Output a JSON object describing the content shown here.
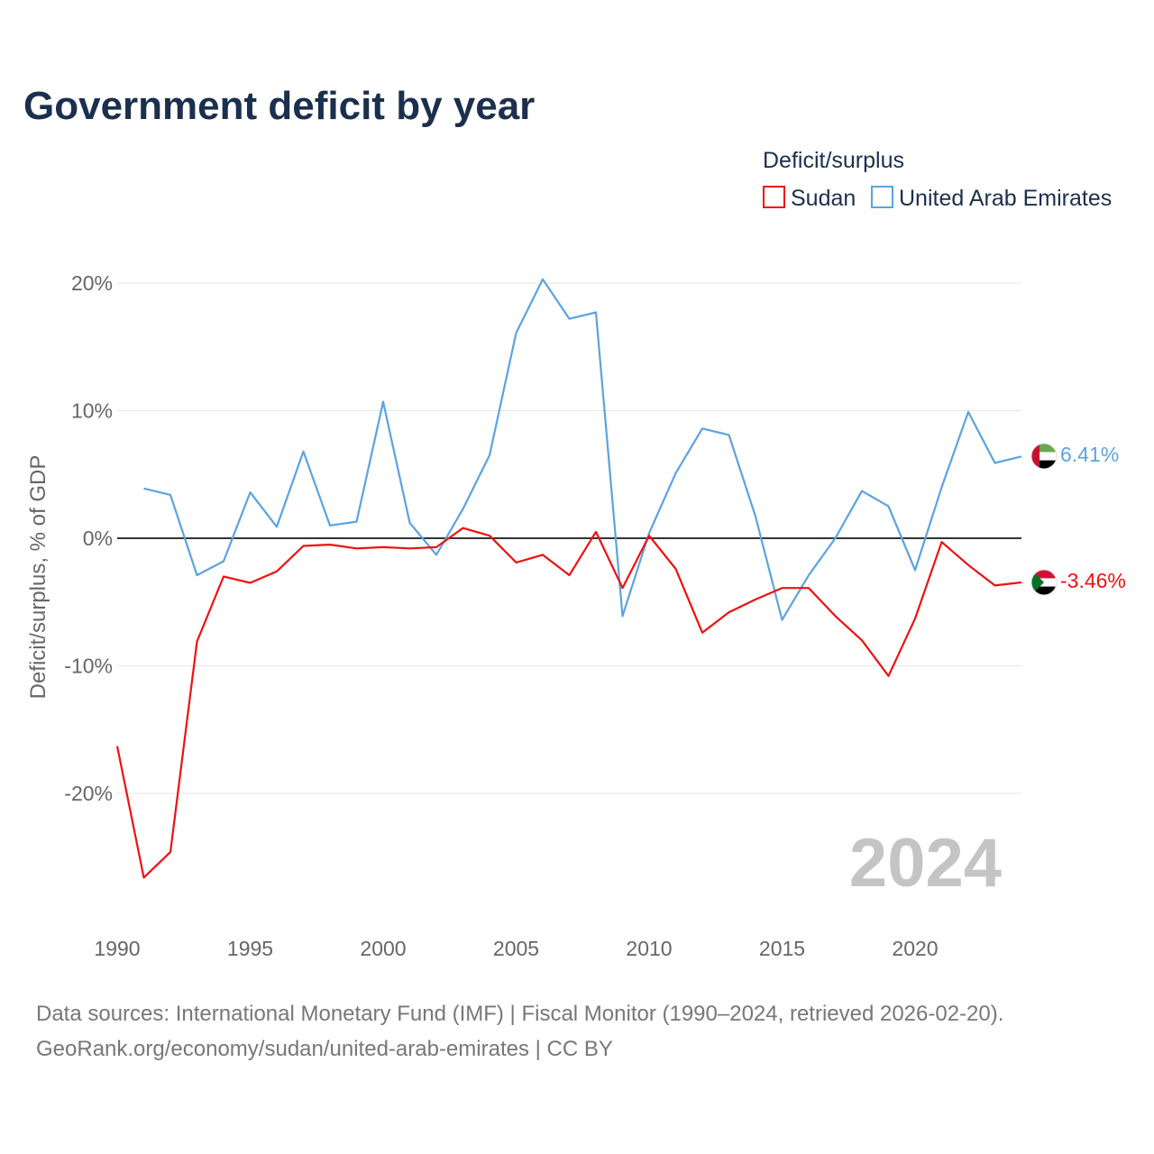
{
  "title": "Government deficit by year",
  "legend": {
    "title": "Deficit/surplus",
    "items": [
      {
        "name": "Sudan",
        "color": "#ee1111"
      },
      {
        "name": "United Arab Emirates",
        "color": "#5ba3e0"
      }
    ]
  },
  "big_year": "2024",
  "sources": {
    "line1": "Data sources: International Monetary Fund (IMF) | Fiscal Monitor (1990–2024, retrieved 2026-02-20).",
    "line2": "GeoRank.org/economy/sudan/united-arab-emirates | CC BY"
  },
  "chart_data": {
    "type": "line",
    "title": "Government deficit by year",
    "xlabel": "",
    "ylabel": "Deficit/surplus, % of GDP",
    "xlim": [
      1990,
      2024
    ],
    "ylim": [
      -28,
      21
    ],
    "x_ticks": [
      1990,
      1995,
      2000,
      2005,
      2010,
      2015,
      2020
    ],
    "y_ticks": [
      20,
      10,
      0,
      -10,
      -20
    ],
    "y_tick_labels": [
      "20%",
      "10%",
      "0%",
      "-10%",
      "-20%"
    ],
    "zero_line": true,
    "grid": true,
    "series": [
      {
        "name": "Sudan",
        "color": "#ee1111",
        "end_label": "-3.46%",
        "points": [
          [
            1990,
            -16.3
          ],
          [
            1991,
            -26.6
          ],
          [
            1992,
            -24.6
          ],
          [
            1993,
            -8.1
          ],
          [
            1994,
            -3.0
          ],
          [
            1995,
            -3.5
          ],
          [
            1996,
            -2.6
          ],
          [
            1997,
            -0.6
          ],
          [
            1998,
            -0.5
          ],
          [
            1999,
            -0.8
          ],
          [
            2000,
            -0.7
          ],
          [
            2001,
            -0.8
          ],
          [
            2002,
            -0.7
          ],
          [
            2003,
            0.8
          ],
          [
            2004,
            0.2
          ],
          [
            2005,
            -1.9
          ],
          [
            2006,
            -1.3
          ],
          [
            2007,
            -2.9
          ],
          [
            2008,
            0.5
          ],
          [
            2009,
            -3.9
          ],
          [
            2010,
            0.2
          ],
          [
            2011,
            -2.4
          ],
          [
            2012,
            -7.4
          ],
          [
            2013,
            -5.8
          ],
          [
            2014,
            -4.8
          ],
          [
            2015,
            -3.9
          ],
          [
            2016,
            -3.9
          ],
          [
            2017,
            -6.1
          ],
          [
            2018,
            -8.0
          ],
          [
            2019,
            -10.8
          ],
          [
            2020,
            -6.3
          ],
          [
            2021,
            -0.3
          ],
          [
            2022,
            -2.1
          ],
          [
            2023,
            -3.7
          ],
          [
            2024,
            -3.46
          ]
        ]
      },
      {
        "name": "United Arab Emirates",
        "color": "#5ba3e0",
        "end_label": "6.41%",
        "points": [
          [
            1991,
            3.9
          ],
          [
            1992,
            3.4
          ],
          [
            1993,
            -2.9
          ],
          [
            1994,
            -1.8
          ],
          [
            1995,
            3.6
          ],
          [
            1996,
            0.9
          ],
          [
            1997,
            6.8
          ],
          [
            1998,
            1.0
          ],
          [
            1999,
            1.3
          ],
          [
            2000,
            10.7
          ],
          [
            2001,
            1.2
          ],
          [
            2002,
            -1.3
          ],
          [
            2003,
            2.3
          ],
          [
            2004,
            6.5
          ],
          [
            2005,
            16.1
          ],
          [
            2006,
            20.3
          ],
          [
            2007,
            17.2
          ],
          [
            2008,
            17.7
          ],
          [
            2009,
            -6.1
          ],
          [
            2010,
            0.4
          ],
          [
            2011,
            5.1
          ],
          [
            2012,
            8.6
          ],
          [
            2013,
            8.1
          ],
          [
            2014,
            1.7
          ],
          [
            2015,
            -6.4
          ],
          [
            2016,
            -2.9
          ],
          [
            2017,
            0.0
          ],
          [
            2018,
            3.7
          ],
          [
            2019,
            2.5
          ],
          [
            2020,
            -2.5
          ],
          [
            2021,
            4.0
          ],
          [
            2022,
            9.9
          ],
          [
            2023,
            5.9
          ],
          [
            2024,
            6.41
          ]
        ]
      }
    ]
  }
}
